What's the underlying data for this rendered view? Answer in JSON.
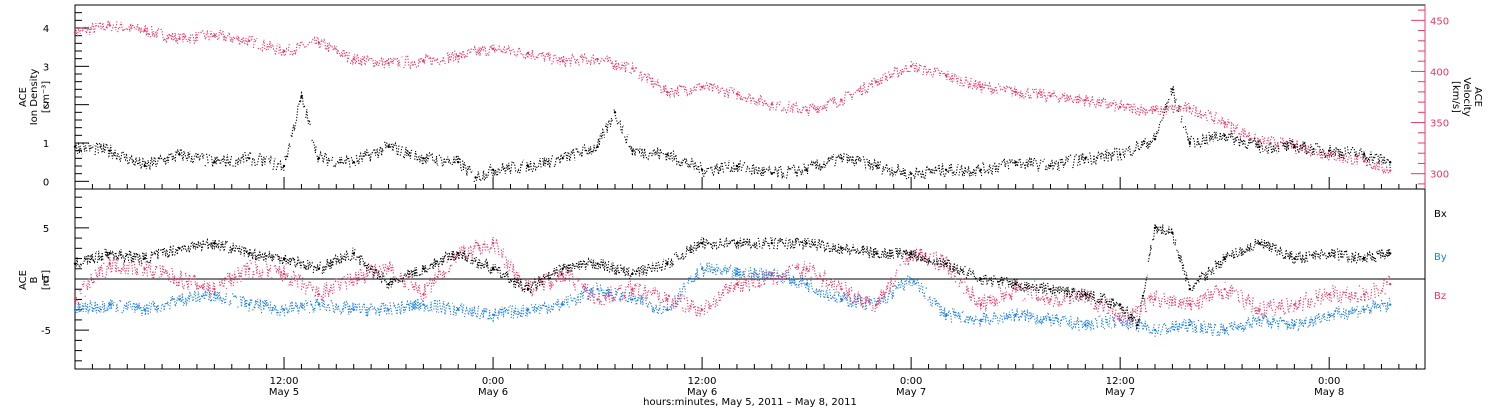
{
  "colors": {
    "black": "#000000",
    "pink": "#e8386a",
    "blue": "#1e7fdc"
  },
  "x_axis": {
    "label": "hours:minutes,  May  5, 2011  –  May  8, 2011",
    "ticks": [
      {
        "t": 12,
        "time": "12:00",
        "date": "May 5"
      },
      {
        "t": 24,
        "time": "0:00",
        "date": "May 6"
      },
      {
        "t": 36,
        "time": "12:00",
        "date": "May 6"
      },
      {
        "t": 48,
        "time": "0:00",
        "date": "May 7"
      },
      {
        "t": 60,
        "time": "12:00",
        "date": "May 7"
      },
      {
        "t": 72,
        "time": "0:00",
        "date": "May 8"
      }
    ]
  },
  "chart_data": [
    {
      "type": "scatter",
      "panel": "plasma",
      "xlabel": "hours:minutes,  May  5, 2011  –  May  8, 2011",
      "xlim": [
        0,
        77.5
      ],
      "ylabel_left": [
        "ACE",
        "Ion Density",
        "[cm⁻³]"
      ],
      "ylim_left": [
        -0.2,
        4.6
      ],
      "yticks_left": [
        0,
        1,
        2,
        3,
        4
      ],
      "ylabel_right": [
        "ACE",
        "Velocity",
        "[km/s]"
      ],
      "ylim_right": [
        285,
        465
      ],
      "yticks_right": [
        300,
        350,
        400,
        450
      ],
      "series": [
        {
          "axis": "left",
          "color": "#000000",
          "x": [
            0,
            2,
            4,
            6,
            8,
            10,
            12,
            13,
            14,
            16,
            18,
            20,
            22,
            23,
            24,
            26,
            28,
            30,
            31,
            32,
            34,
            36,
            38,
            40,
            42,
            44,
            46,
            48,
            50,
            52,
            54,
            56,
            58,
            60,
            62,
            63,
            64,
            66,
            68,
            70,
            72,
            74,
            75.5
          ],
          "values": [
            0.9,
            0.8,
            0.4,
            0.7,
            0.5,
            0.6,
            0.4,
            2.2,
            0.6,
            0.5,
            0.9,
            0.6,
            0.5,
            0.1,
            0.3,
            0.4,
            0.6,
            0.9,
            1.8,
            0.8,
            0.7,
            0.3,
            0.4,
            0.2,
            0.3,
            0.6,
            0.4,
            0.2,
            0.3,
            0.3,
            0.5,
            0.4,
            0.6,
            0.7,
            1.1,
            2.4,
            1.0,
            1.2,
            0.9,
            0.9,
            0.8,
            0.7,
            0.5
          ]
        },
        {
          "axis": "right",
          "color": "#e8386a",
          "x": [
            0,
            2,
            4,
            6,
            8,
            10,
            12,
            14,
            16,
            18,
            20,
            22,
            24,
            26,
            28,
            30,
            32,
            34,
            36,
            38,
            40,
            42,
            44,
            46,
            48,
            50,
            52,
            54,
            56,
            58,
            60,
            62,
            64,
            66,
            68,
            70,
            72,
            74,
            75.5
          ],
          "values": [
            438,
            445,
            440,
            432,
            435,
            430,
            420,
            428,
            412,
            408,
            410,
            415,
            422,
            418,
            410,
            412,
            403,
            380,
            385,
            378,
            368,
            362,
            372,
            390,
            405,
            396,
            385,
            380,
            376,
            372,
            365,
            362,
            364,
            350,
            332,
            328,
            318,
            312,
            303
          ]
        }
      ]
    },
    {
      "type": "scatter",
      "panel": "magnetic",
      "ylabel_left": [
        "ACE",
        "B",
        "[nT]"
      ],
      "ylim_left": [
        -8.8,
        8.8
      ],
      "yticks_left": [
        -5,
        0,
        5
      ],
      "series": [
        {
          "name": "Bx",
          "color": "#000000",
          "x": [
            0,
            2,
            4,
            6,
            8,
            10,
            12,
            14,
            16,
            18,
            20,
            22,
            24,
            26,
            28,
            30,
            32,
            34,
            36,
            38,
            40,
            42,
            44,
            46,
            48,
            50,
            52,
            54,
            56,
            58,
            60,
            61,
            62,
            63,
            64,
            66,
            68,
            70,
            72,
            74,
            75.5
          ],
          "values": [
            1.5,
            2.5,
            2.0,
            3.0,
            3.5,
            2.5,
            2.0,
            1.0,
            2.5,
            -0.5,
            1.0,
            2.5,
            1.0,
            -1.0,
            1.0,
            1.5,
            0.5,
            1.5,
            3.5,
            3.5,
            3.5,
            3.5,
            3.0,
            2.5,
            2.5,
            1.5,
            0.0,
            -0.5,
            -1.0,
            -1.5,
            -2.5,
            -4.5,
            5.0,
            4.5,
            -1.0,
            2.0,
            3.5,
            2.0,
            2.5,
            2.0,
            2.5
          ]
        },
        {
          "name": "By",
          "color": "#1e7fdc",
          "x": [
            0,
            2,
            4,
            6,
            8,
            10,
            12,
            14,
            16,
            18,
            20,
            22,
            24,
            26,
            28,
            30,
            32,
            34,
            36,
            38,
            40,
            42,
            44,
            46,
            48,
            50,
            52,
            54,
            56,
            58,
            60,
            62,
            64,
            66,
            68,
            70,
            72,
            74,
            75.5
          ],
          "values": [
            -3.0,
            -2.5,
            -3.0,
            -2.0,
            -1.5,
            -2.5,
            -3.0,
            -2.5,
            -3.0,
            -3.0,
            -2.5,
            -3.0,
            -3.5,
            -3.0,
            -2.5,
            -1.0,
            -2.0,
            -3.0,
            1.0,
            0.5,
            0.5,
            -0.5,
            -2.0,
            -2.5,
            0.0,
            -3.5,
            -4.0,
            -3.5,
            -4.0,
            -4.5,
            -4.0,
            -5.0,
            -4.5,
            -5.0,
            -4.0,
            -4.5,
            -3.5,
            -3.0,
            -2.5
          ]
        },
        {
          "name": "Bz",
          "color": "#e8386a",
          "x": [
            0,
            2,
            4,
            6,
            8,
            10,
            12,
            14,
            16,
            18,
            20,
            22,
            24,
            26,
            28,
            30,
            32,
            34,
            36,
            38,
            40,
            42,
            44,
            46,
            48,
            50,
            52,
            54,
            56,
            58,
            60,
            62,
            64,
            66,
            68,
            70,
            72,
            74,
            75.5
          ],
          "values": [
            -2.0,
            1.5,
            1.0,
            0.0,
            -1.0,
            1.0,
            0.5,
            -1.5,
            0.0,
            1.0,
            -1.5,
            2.5,
            3.5,
            -1.0,
            0.5,
            -2.0,
            -1.0,
            -2.0,
            -3.0,
            -0.5,
            0.0,
            1.0,
            -1.0,
            -2.5,
            2.5,
            1.5,
            -2.5,
            -1.0,
            -2.0,
            -1.5,
            -4.0,
            -2.0,
            -2.5,
            -1.0,
            -3.0,
            -2.5,
            -1.5,
            -1.5,
            -0.5
          ]
        }
      ],
      "legend": {
        "position": "right",
        "entries": [
          "Bx",
          "By",
          "Bz"
        ]
      }
    }
  ]
}
